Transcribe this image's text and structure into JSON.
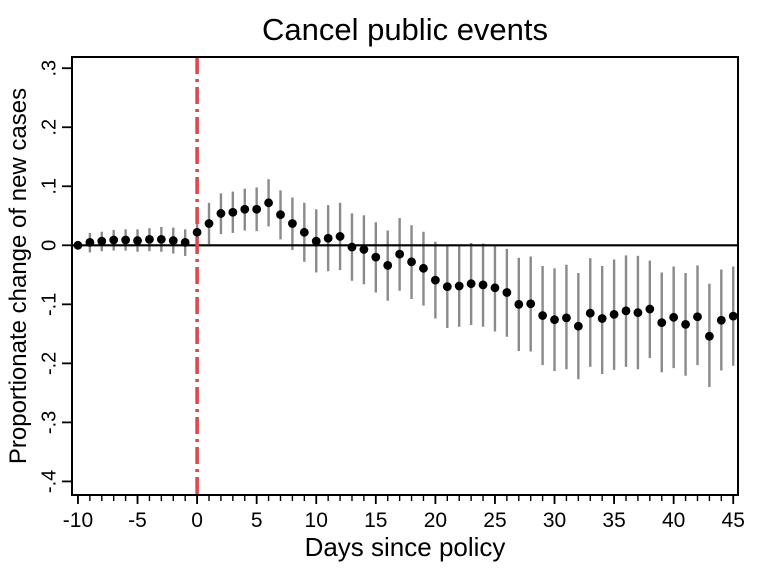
{
  "chart_data": {
    "type": "scatter",
    "title": "Cancel public events",
    "xlabel": "Days since policy",
    "ylabel": "Proportionate change of new cases",
    "grid": false,
    "legend": false,
    "x_days": [
      -10,
      -9,
      -8,
      -7,
      -6,
      -5,
      -4,
      -3,
      -2,
      -1,
      0,
      1,
      2,
      3,
      4,
      5,
      6,
      7,
      8,
      9,
      10,
      11,
      12,
      13,
      14,
      15,
      16,
      17,
      18,
      19,
      20,
      21,
      22,
      23,
      24,
      25,
      26,
      27,
      28,
      29,
      30,
      31,
      32,
      33,
      34,
      35,
      36,
      37,
      38,
      39,
      40,
      41,
      42,
      43,
      44,
      45
    ],
    "series": [
      {
        "name": "point estimate",
        "values": [
          0.0,
          0.005,
          0.007,
          0.009,
          0.009,
          0.008,
          0.01,
          0.01,
          0.008,
          0.005,
          0.022,
          0.037,
          0.054,
          0.056,
          0.061,
          0.061,
          0.072,
          0.052,
          0.037,
          0.022,
          0.007,
          0.012,
          0.015,
          -0.003,
          -0.007,
          -0.02,
          -0.034,
          -0.015,
          -0.028,
          -0.039,
          -0.059,
          -0.07,
          -0.069,
          -0.065,
          -0.067,
          -0.072,
          -0.08,
          -0.1,
          -0.099,
          -0.119,
          -0.126,
          -0.123,
          -0.137,
          -0.115,
          -0.124,
          -0.117,
          -0.111,
          -0.114,
          -0.108,
          -0.131,
          -0.122,
          -0.134,
          -0.121,
          -0.154,
          -0.127,
          -0.12
        ]
      }
    ],
    "ci_low": [
      0.0,
      -0.012,
      -0.01,
      -0.009,
      -0.009,
      -0.011,
      -0.01,
      -0.011,
      -0.014,
      -0.018,
      -0.008,
      0.002,
      0.019,
      0.021,
      0.025,
      0.024,
      0.032,
      0.01,
      -0.008,
      -0.028,
      -0.046,
      -0.044,
      -0.042,
      -0.06,
      -0.066,
      -0.08,
      -0.094,
      -0.077,
      -0.091,
      -0.102,
      -0.124,
      -0.14,
      -0.138,
      -0.135,
      -0.138,
      -0.146,
      -0.155,
      -0.179,
      -0.18,
      -0.203,
      -0.213,
      -0.21,
      -0.227,
      -0.206,
      -0.218,
      -0.211,
      -0.206,
      -0.21,
      -0.191,
      -0.215,
      -0.208,
      -0.221,
      -0.203,
      -0.24,
      -0.212,
      -0.204
    ],
    "ci_high": [
      0.0,
      0.021,
      0.023,
      0.026,
      0.027,
      0.027,
      0.029,
      0.031,
      0.03,
      0.027,
      0.051,
      0.072,
      0.088,
      0.091,
      0.096,
      0.098,
      0.112,
      0.093,
      0.081,
      0.072,
      0.061,
      0.068,
      0.072,
      0.054,
      0.051,
      0.039,
      0.025,
      0.046,
      0.034,
      0.023,
      0.006,
      0.001,
      0.001,
      0.004,
      0.003,
      0.001,
      -0.006,
      -0.021,
      -0.019,
      -0.035,
      -0.039,
      -0.033,
      -0.047,
      -0.022,
      -0.035,
      -0.024,
      -0.017,
      -0.018,
      -0.026,
      -0.046,
      -0.036,
      -0.047,
      -0.034,
      -0.065,
      -0.041,
      -0.036
    ],
    "xlim": [
      -10.5,
      45.4
    ],
    "ylim": [
      -0.423,
      0.319
    ],
    "x_major_ticks": [
      -10,
      -5,
      0,
      5,
      10,
      15,
      20,
      25,
      30,
      35,
      40,
      45
    ],
    "x_tick_labels": [
      "-10",
      "-5",
      "0",
      "5",
      "10",
      "15",
      "20",
      "25",
      "30",
      "35",
      "40",
      "45"
    ],
    "x_minor_tick_step": 1,
    "y_ticks": [
      0.3,
      0.2,
      0.1,
      0,
      -0.1,
      -0.2,
      -0.3,
      -0.4
    ],
    "y_tick_labels": [
      ".3",
      ".2",
      ".1",
      "0",
      "-.1",
      "-.2",
      "-.3",
      "-.4"
    ],
    "zero_line_y": 0,
    "policy_line_x": 0,
    "legend_position": "none",
    "colors": {
      "point": "#000000",
      "ci_bar": "#8a8a8a",
      "zero_line": "#000000",
      "policy_line": "#e0474c",
      "axis": "#000000",
      "background": "#ffffff"
    }
  }
}
